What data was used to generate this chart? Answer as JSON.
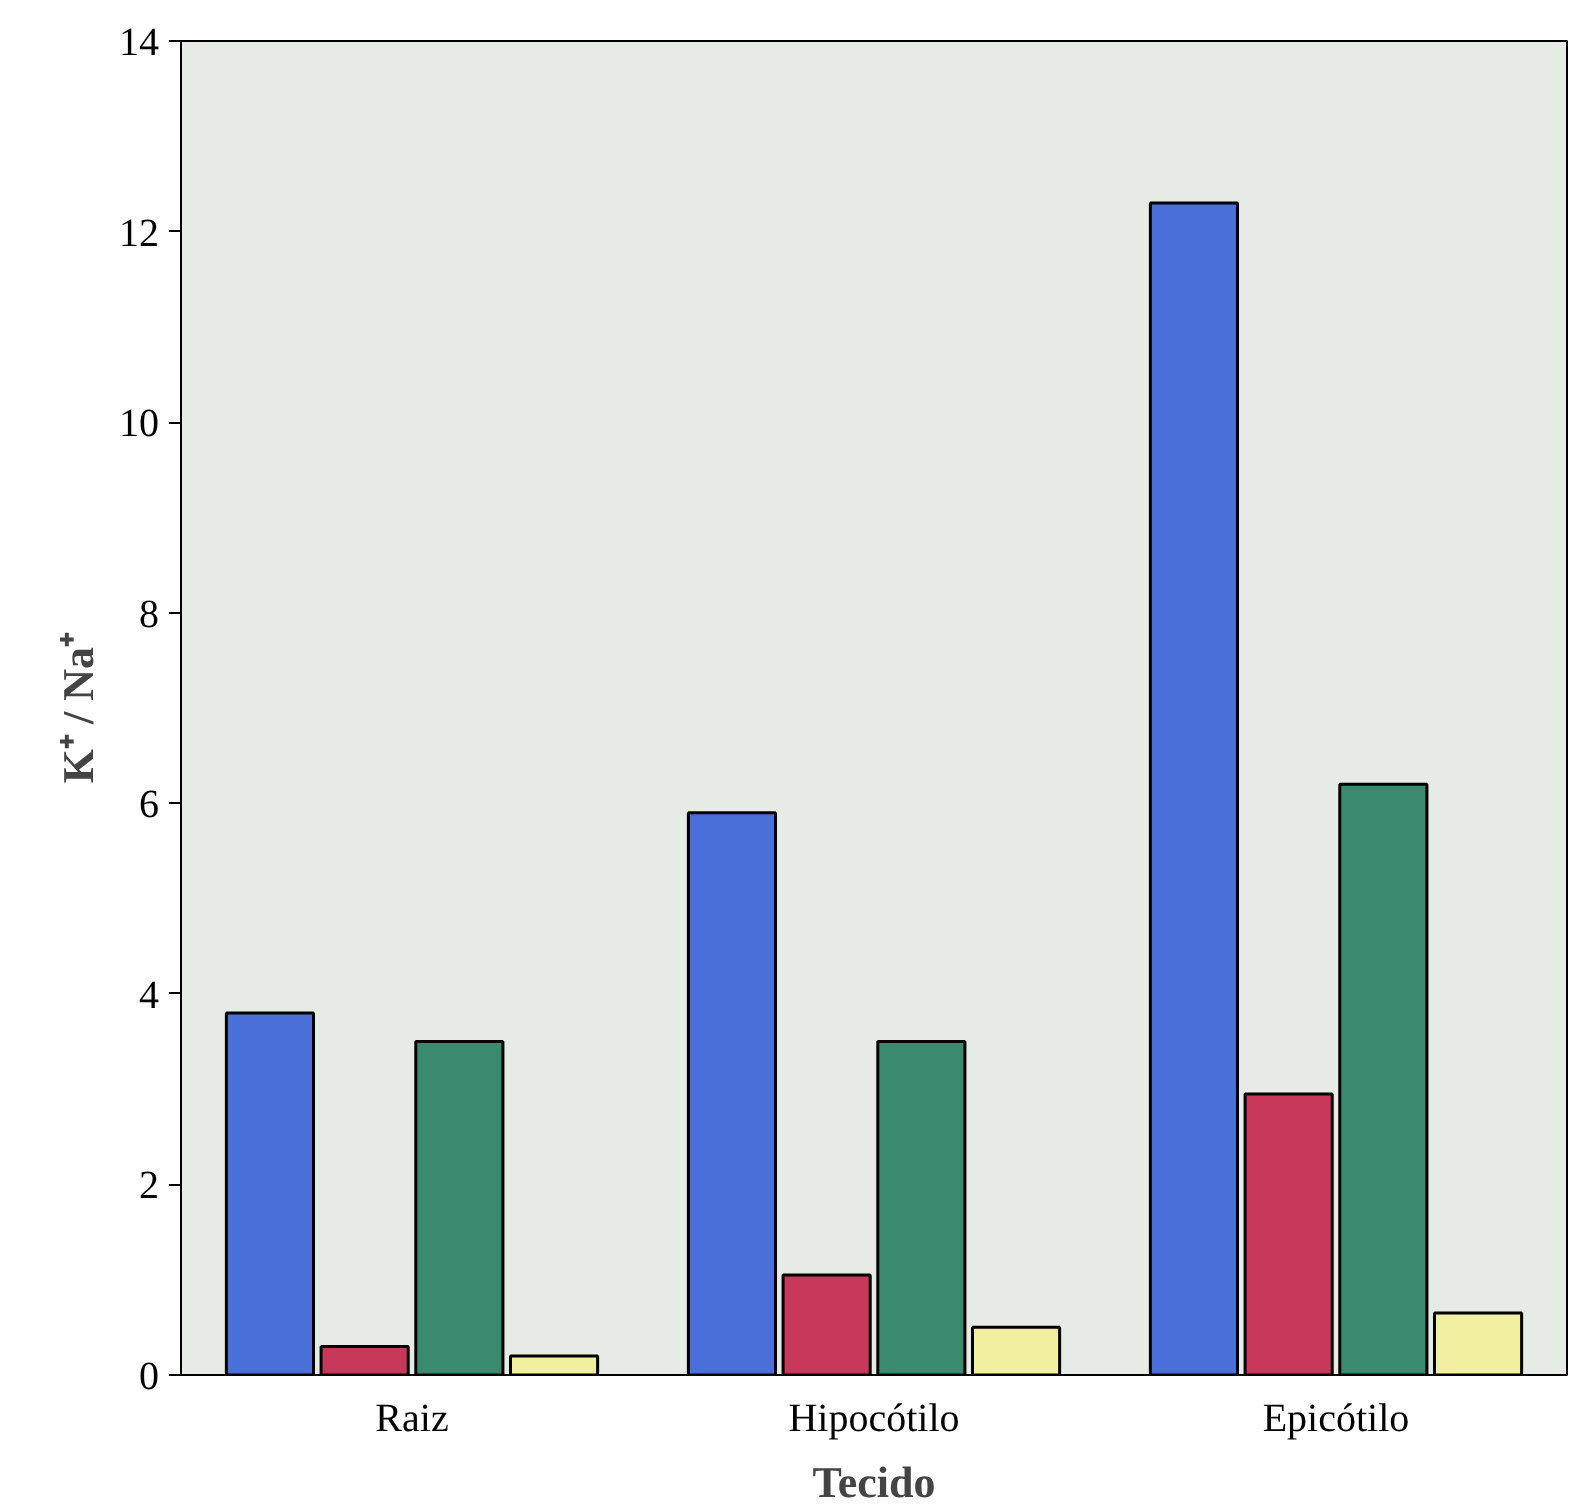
{
  "chart_data": {
    "type": "bar",
    "xlabel": "Tecido",
    "ylabel": "K⁺ / Na⁺",
    "categories": [
      "Raiz",
      "Hipocótilo",
      "Epicótilo"
    ],
    "series": [
      {
        "color": "#4a6fd8",
        "values": [
          3.8,
          5.9,
          12.3
        ]
      },
      {
        "color": "#c8385a",
        "values": [
          0.3,
          1.05,
          2.95
        ]
      },
      {
        "color": "#3a8a70",
        "values": [
          3.5,
          3.5,
          6.2
        ]
      },
      {
        "color": "#f0f0a0",
        "values": [
          0.2,
          0.5,
          0.65
        ]
      }
    ],
    "ylim": [
      0,
      14
    ],
    "yticks": [
      0,
      2,
      4,
      6,
      8,
      10,
      12,
      14
    ],
    "grid": false
  }
}
